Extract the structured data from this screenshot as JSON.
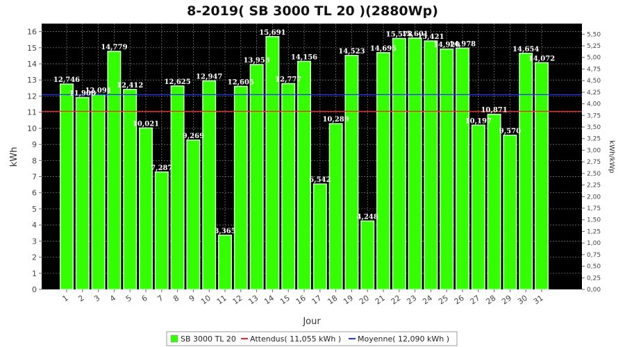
{
  "chart_data": {
    "type": "bar",
    "title": "8-2019( SB 3000 TL 20 )(2880Wp)",
    "xlabel": "Jour",
    "ylabel": "kWh",
    "ylabel_right": "kWh/kWp",
    "ylim": [
      0,
      16.5
    ],
    "ylim_right": [
      0,
      5.729
    ],
    "yticks": [
      "0",
      "1",
      "2",
      "3",
      "4",
      "5",
      "6",
      "7",
      "8",
      "9",
      "10",
      "11",
      "12",
      "13",
      "14",
      "15",
      "16"
    ],
    "yticks_right": [
      "0,00",
      "0,25",
      "0,50",
      "0,75",
      "1,00",
      "1,25",
      "1,50",
      "1,75",
      "2,00",
      "2,25",
      "2,50",
      "2,75",
      "3,00",
      "3,25",
      "3,50",
      "3,75",
      "4,00",
      "4,25",
      "4,50",
      "4,75",
      "5,00",
      "5,25",
      "5,50"
    ],
    "categories": [
      "1",
      "2",
      "3",
      "4",
      "5",
      "6",
      "7",
      "8",
      "9",
      "10",
      "11",
      "12",
      "13",
      "14",
      "15",
      "16",
      "17",
      "18",
      "19",
      "20",
      "21",
      "22",
      "23",
      "24",
      "25",
      "26",
      "27",
      "28",
      "29",
      "30",
      "31"
    ],
    "series": [
      {
        "name": "SB 3000 TL 20",
        "color": "#33ff00",
        "values": [
          12.746,
          11.908,
          12.091,
          14.779,
          12.412,
          10.021,
          7.287,
          12.625,
          9.269,
          12.947,
          3.365,
          12.605,
          13.953,
          15.691,
          12.777,
          14.156,
          6.542,
          10.289,
          14.523,
          4.248,
          14.695,
          15.578,
          15.601,
          15.421,
          14.92,
          14.978,
          10.197,
          10.871,
          9.57,
          14.654,
          14.072
        ],
        "labels": [
          "12,746",
          "11,908",
          "12,091",
          "14,779",
          "12,412",
          "10,021",
          "7,287",
          "12,625",
          "9,269",
          "12,947",
          "3,365",
          "12,605",
          "13,953",
          "15,691",
          "12,777",
          "14,156",
          "6,542",
          "10,289",
          "14,523",
          "4,248",
          "14,695",
          "15,578",
          "15,601",
          "15,421",
          "14,920",
          "14,978",
          "10,197",
          "10,871",
          "9,570",
          "14,654",
          "14,072"
        ]
      }
    ],
    "reference_lines": [
      {
        "name": "Attendus",
        "value": 11.055,
        "color": "#ff2020"
      },
      {
        "name": "Moyenne",
        "value": 12.09,
        "color": "#2030ff"
      }
    ],
    "grid": true,
    "legend_position": "bottom-center",
    "legend_items": [
      "SB 3000 TL 20",
      "Attendus( 11,055 kWh )",
      "Moyenne( 12,090 kWh )"
    ],
    "colors": {
      "plot_background": "#000000",
      "bar": "#33ff00",
      "bar_edge": "#ccffcc",
      "grid": "#888888"
    }
  }
}
